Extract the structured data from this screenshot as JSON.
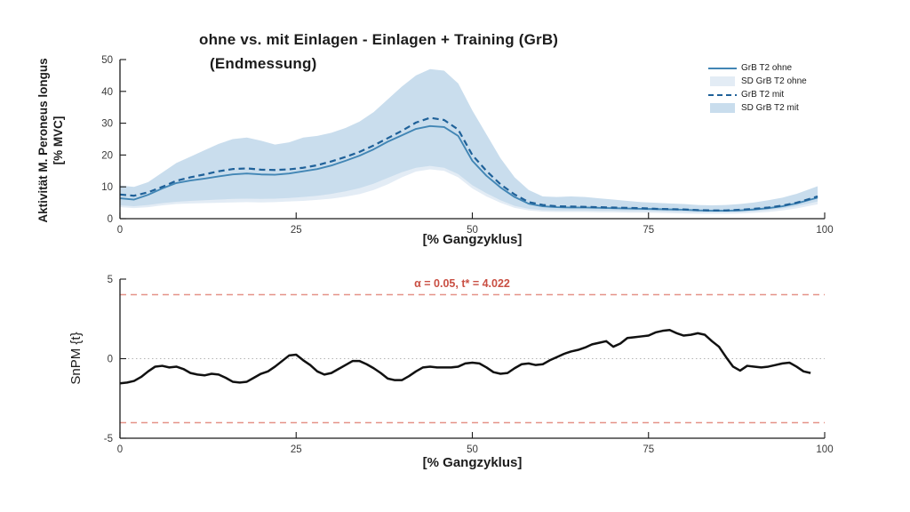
{
  "figure": {
    "title_line1": "ohne vs. mit Einlagen - Einlagen + Training (GrB)",
    "title_line2": "(Endmessung)"
  },
  "top_chart": {
    "ylabel_line1": "Aktivität M. Peroneus longus",
    "ylabel_line2": "[% MVC]",
    "xlabel": "[% Gangzyklus]",
    "legend": [
      {
        "label": "GrB T2 ohne",
        "type": "line-solid",
        "color": "#4286b5"
      },
      {
        "label": "SD GrB T2 ohne",
        "type": "patch",
        "color": "#e3ecf5"
      },
      {
        "label": "GrB T2 mit",
        "type": "line-dashed",
        "color": "#1f6199"
      },
      {
        "label": "SD GrB T2 mit",
        "type": "patch",
        "color": "#c9dded"
      }
    ]
  },
  "bottom_chart": {
    "ylabel": "SnPM {t}",
    "xlabel": "[% Gangzyklus]",
    "annotation": "α = 0.05, t* = 4.022",
    "annotation_color": "#c94f43",
    "alpha": "0.05",
    "t_critical": "4.022"
  },
  "chart_data": [
    {
      "type": "line",
      "title": "ohne vs. mit Einlagen - Einlagen + Training (GrB) (Endmessung)",
      "xlabel": "[% Gangzyklus]",
      "ylabel": "Aktivität M. Peroneus longus [% MVC]",
      "xlim": [
        0,
        100
      ],
      "ylim": [
        0,
        50
      ],
      "xticks": [
        0,
        25,
        50,
        75,
        100
      ],
      "yticks": [
        0,
        10,
        20,
        30,
        40,
        50
      ],
      "grid": false,
      "legend_position": "top-right",
      "x": [
        0,
        2,
        4,
        6,
        8,
        10,
        12,
        14,
        16,
        18,
        20,
        22,
        24,
        26,
        28,
        30,
        32,
        34,
        36,
        38,
        40,
        42,
        44,
        46,
        48,
        50,
        52,
        54,
        56,
        58,
        60,
        62,
        64,
        66,
        68,
        70,
        72,
        74,
        76,
        78,
        80,
        82,
        84,
        86,
        88,
        90,
        92,
        94,
        96,
        98,
        99
      ],
      "series": [
        {
          "name": "SD GrB T2 ohne",
          "kind": "band",
          "color": "#e3ecf5",
          "upper": [
            9.3,
            9.0,
            10.5,
            13.0,
            15.5,
            17.5,
            19.5,
            21.5,
            23.0,
            23.5,
            22.8,
            22.0,
            22.5,
            23.5,
            24.0,
            25.0,
            26.5,
            28.5,
            31.5,
            35.0,
            38.5,
            42.0,
            44.0,
            43.5,
            40.0,
            32.0,
            25.0,
            18.0,
            12.0,
            8.5,
            6.5,
            6.3,
            6.5,
            6.3,
            6.0,
            5.6,
            5.2,
            4.9,
            4.7,
            4.5,
            4.3,
            4.0,
            3.9,
            4.0,
            4.3,
            4.8,
            5.4,
            6.2,
            7.3,
            8.8,
            9.5
          ],
          "lower": [
            3.6,
            3.3,
            3.6,
            4.2,
            4.6,
            4.8,
            4.9,
            5.0,
            5.1,
            5.2,
            5.1,
            5.2,
            5.4,
            5.6,
            5.9,
            6.3,
            6.9,
            7.7,
            9.0,
            10.8,
            13.0,
            14.8,
            15.5,
            15.0,
            13.0,
            9.5,
            7.0,
            5.0,
            3.4,
            2.6,
            2.2,
            2.1,
            2.1,
            2.1,
            2.0,
            2.0,
            1.9,
            1.9,
            1.8,
            1.7,
            1.6,
            1.5,
            1.5,
            1.5,
            1.6,
            1.8,
            2.1,
            2.6,
            3.2,
            4.1,
            4.5
          ]
        },
        {
          "name": "SD GrB T2 mit",
          "kind": "band",
          "color": "#c9dded",
          "upper": [
            10.4,
            10.0,
            11.5,
            14.5,
            17.5,
            19.5,
            21.5,
            23.5,
            25.0,
            25.5,
            24.5,
            23.3,
            24.0,
            25.5,
            26.0,
            27.0,
            28.5,
            30.5,
            33.5,
            37.5,
            41.5,
            45.0,
            47.0,
            46.5,
            42.5,
            34.0,
            26.5,
            19.0,
            13.0,
            9.0,
            7.0,
            6.8,
            7.0,
            6.8,
            6.4,
            6.0,
            5.6,
            5.2,
            5.0,
            4.8,
            4.6,
            4.3,
            4.2,
            4.3,
            4.6,
            5.1,
            5.8,
            6.6,
            7.8,
            9.4,
            10.2
          ],
          "lower": [
            4.2,
            3.9,
            4.3,
            4.9,
            5.3,
            5.6,
            5.8,
            6.0,
            6.2,
            6.3,
            6.2,
            6.3,
            6.5,
            6.8,
            7.2,
            7.8,
            8.6,
            9.6,
            11.0,
            12.8,
            14.6,
            16.0,
            16.6,
            16.0,
            14.0,
            10.5,
            8.0,
            5.8,
            4.0,
            3.1,
            2.7,
            2.6,
            2.6,
            2.6,
            2.5,
            2.5,
            2.4,
            2.4,
            2.3,
            2.2,
            2.1,
            2.0,
            2.0,
            2.0,
            2.1,
            2.3,
            2.7,
            3.2,
            3.9,
            4.9,
            5.4
          ]
        },
        {
          "name": "GrB T2 ohne",
          "kind": "line",
          "style": "solid",
          "color": "#4286b5",
          "width": 1.9,
          "values": [
            6.4,
            6.0,
            7.5,
            9.5,
            11.2,
            12.0,
            12.6,
            13.3,
            13.9,
            14.2,
            13.9,
            13.8,
            14.2,
            14.9,
            15.6,
            16.7,
            18.2,
            19.8,
            21.8,
            24.2,
            26.2,
            28.2,
            29.1,
            28.8,
            26.0,
            18.2,
            13.5,
            9.8,
            6.8,
            4.7,
            3.9,
            3.6,
            3.5,
            3.5,
            3.4,
            3.3,
            3.2,
            3.1,
            3.0,
            2.9,
            2.8,
            2.6,
            2.5,
            2.5,
            2.6,
            2.9,
            3.3,
            3.9,
            4.8,
            6.0,
            6.6
          ]
        },
        {
          "name": "GrB T2 mit",
          "kind": "line",
          "style": "dashed",
          "color": "#1f6199",
          "width": 2.2,
          "values": [
            7.6,
            7.2,
            8.3,
            10.0,
            11.9,
            13.0,
            13.9,
            14.9,
            15.6,
            15.8,
            15.4,
            15.3,
            15.5,
            16.0,
            16.8,
            18.0,
            19.4,
            21.0,
            23.0,
            25.3,
            27.6,
            30.2,
            31.7,
            31.0,
            28.0,
            20.0,
            15.0,
            10.8,
            7.6,
            5.2,
            4.3,
            3.9,
            3.8,
            3.7,
            3.6,
            3.5,
            3.4,
            3.3,
            3.1,
            3.0,
            2.9,
            2.7,
            2.6,
            2.6,
            2.8,
            3.1,
            3.5,
            4.1,
            5.0,
            6.3,
            7.0
          ]
        }
      ]
    },
    {
      "type": "line",
      "title": "SnPM statistical test",
      "xlabel": "[% Gangzyklus]",
      "ylabel": "SnPM {t}",
      "xlim": [
        0,
        100
      ],
      "ylim": [
        -5,
        5
      ],
      "xticks": [
        0,
        25,
        50,
        75,
        100
      ],
      "yticks": [
        -5,
        0,
        5
      ],
      "grid": false,
      "zero_line": true,
      "zero_line_color": "#b5b5b5",
      "threshold": 4.022,
      "threshold_color": "#e59288",
      "annotation": "α = 0.05, t* = 4.022",
      "x": [
        0,
        1,
        2,
        3,
        4,
        5,
        6,
        7,
        8,
        9,
        10,
        11,
        12,
        13,
        14,
        15,
        16,
        17,
        18,
        19,
        20,
        21,
        22,
        23,
        24,
        25,
        26,
        27,
        28,
        29,
        30,
        31,
        32,
        33,
        34,
        35,
        36,
        37,
        38,
        39,
        40,
        41,
        42,
        43,
        44,
        45,
        46,
        47,
        48,
        49,
        50,
        51,
        52,
        53,
        54,
        55,
        56,
        57,
        58,
        59,
        60,
        61,
        62,
        63,
        64,
        65,
        66,
        67,
        68,
        69,
        70,
        71,
        72,
        73,
        74,
        75,
        76,
        77,
        78,
        79,
        80,
        81,
        82,
        83,
        84,
        85,
        86,
        87,
        88,
        89,
        90,
        91,
        92,
        93,
        94,
        95,
        96,
        97,
        98
      ],
      "series": [
        {
          "name": "SnPM {t}",
          "kind": "line",
          "style": "solid",
          "color": "#111111",
          "width": 2.5,
          "values": [
            -1.55,
            -1.5,
            -1.4,
            -1.15,
            -0.8,
            -0.5,
            -0.45,
            -0.55,
            -0.5,
            -0.65,
            -0.9,
            -1.0,
            -1.05,
            -0.95,
            -1.0,
            -1.2,
            -1.45,
            -1.5,
            -1.45,
            -1.2,
            -0.95,
            -0.8,
            -0.5,
            -0.15,
            0.2,
            0.25,
            -0.1,
            -0.4,
            -0.8,
            -1.0,
            -0.9,
            -0.65,
            -0.4,
            -0.15,
            -0.15,
            -0.35,
            -0.6,
            -0.9,
            -1.25,
            -1.35,
            -1.35,
            -1.1,
            -0.8,
            -0.55,
            -0.5,
            -0.55,
            -0.55,
            -0.55,
            -0.5,
            -0.3,
            -0.25,
            -0.3,
            -0.55,
            -0.85,
            -0.95,
            -0.9,
            -0.6,
            -0.35,
            -0.3,
            -0.4,
            -0.35,
            -0.1,
            0.1,
            0.3,
            0.45,
            0.55,
            0.7,
            0.9,
            1.0,
            1.1,
            0.75,
            0.95,
            1.3,
            1.35,
            1.4,
            1.45,
            1.65,
            1.75,
            1.8,
            1.6,
            1.45,
            1.5,
            1.6,
            1.5,
            1.1,
            0.75,
            0.1,
            -0.5,
            -0.75,
            -0.45,
            -0.5,
            -0.55,
            -0.5,
            -0.4,
            -0.3,
            -0.25,
            -0.5,
            -0.8,
            -0.9
          ]
        }
      ]
    }
  ]
}
